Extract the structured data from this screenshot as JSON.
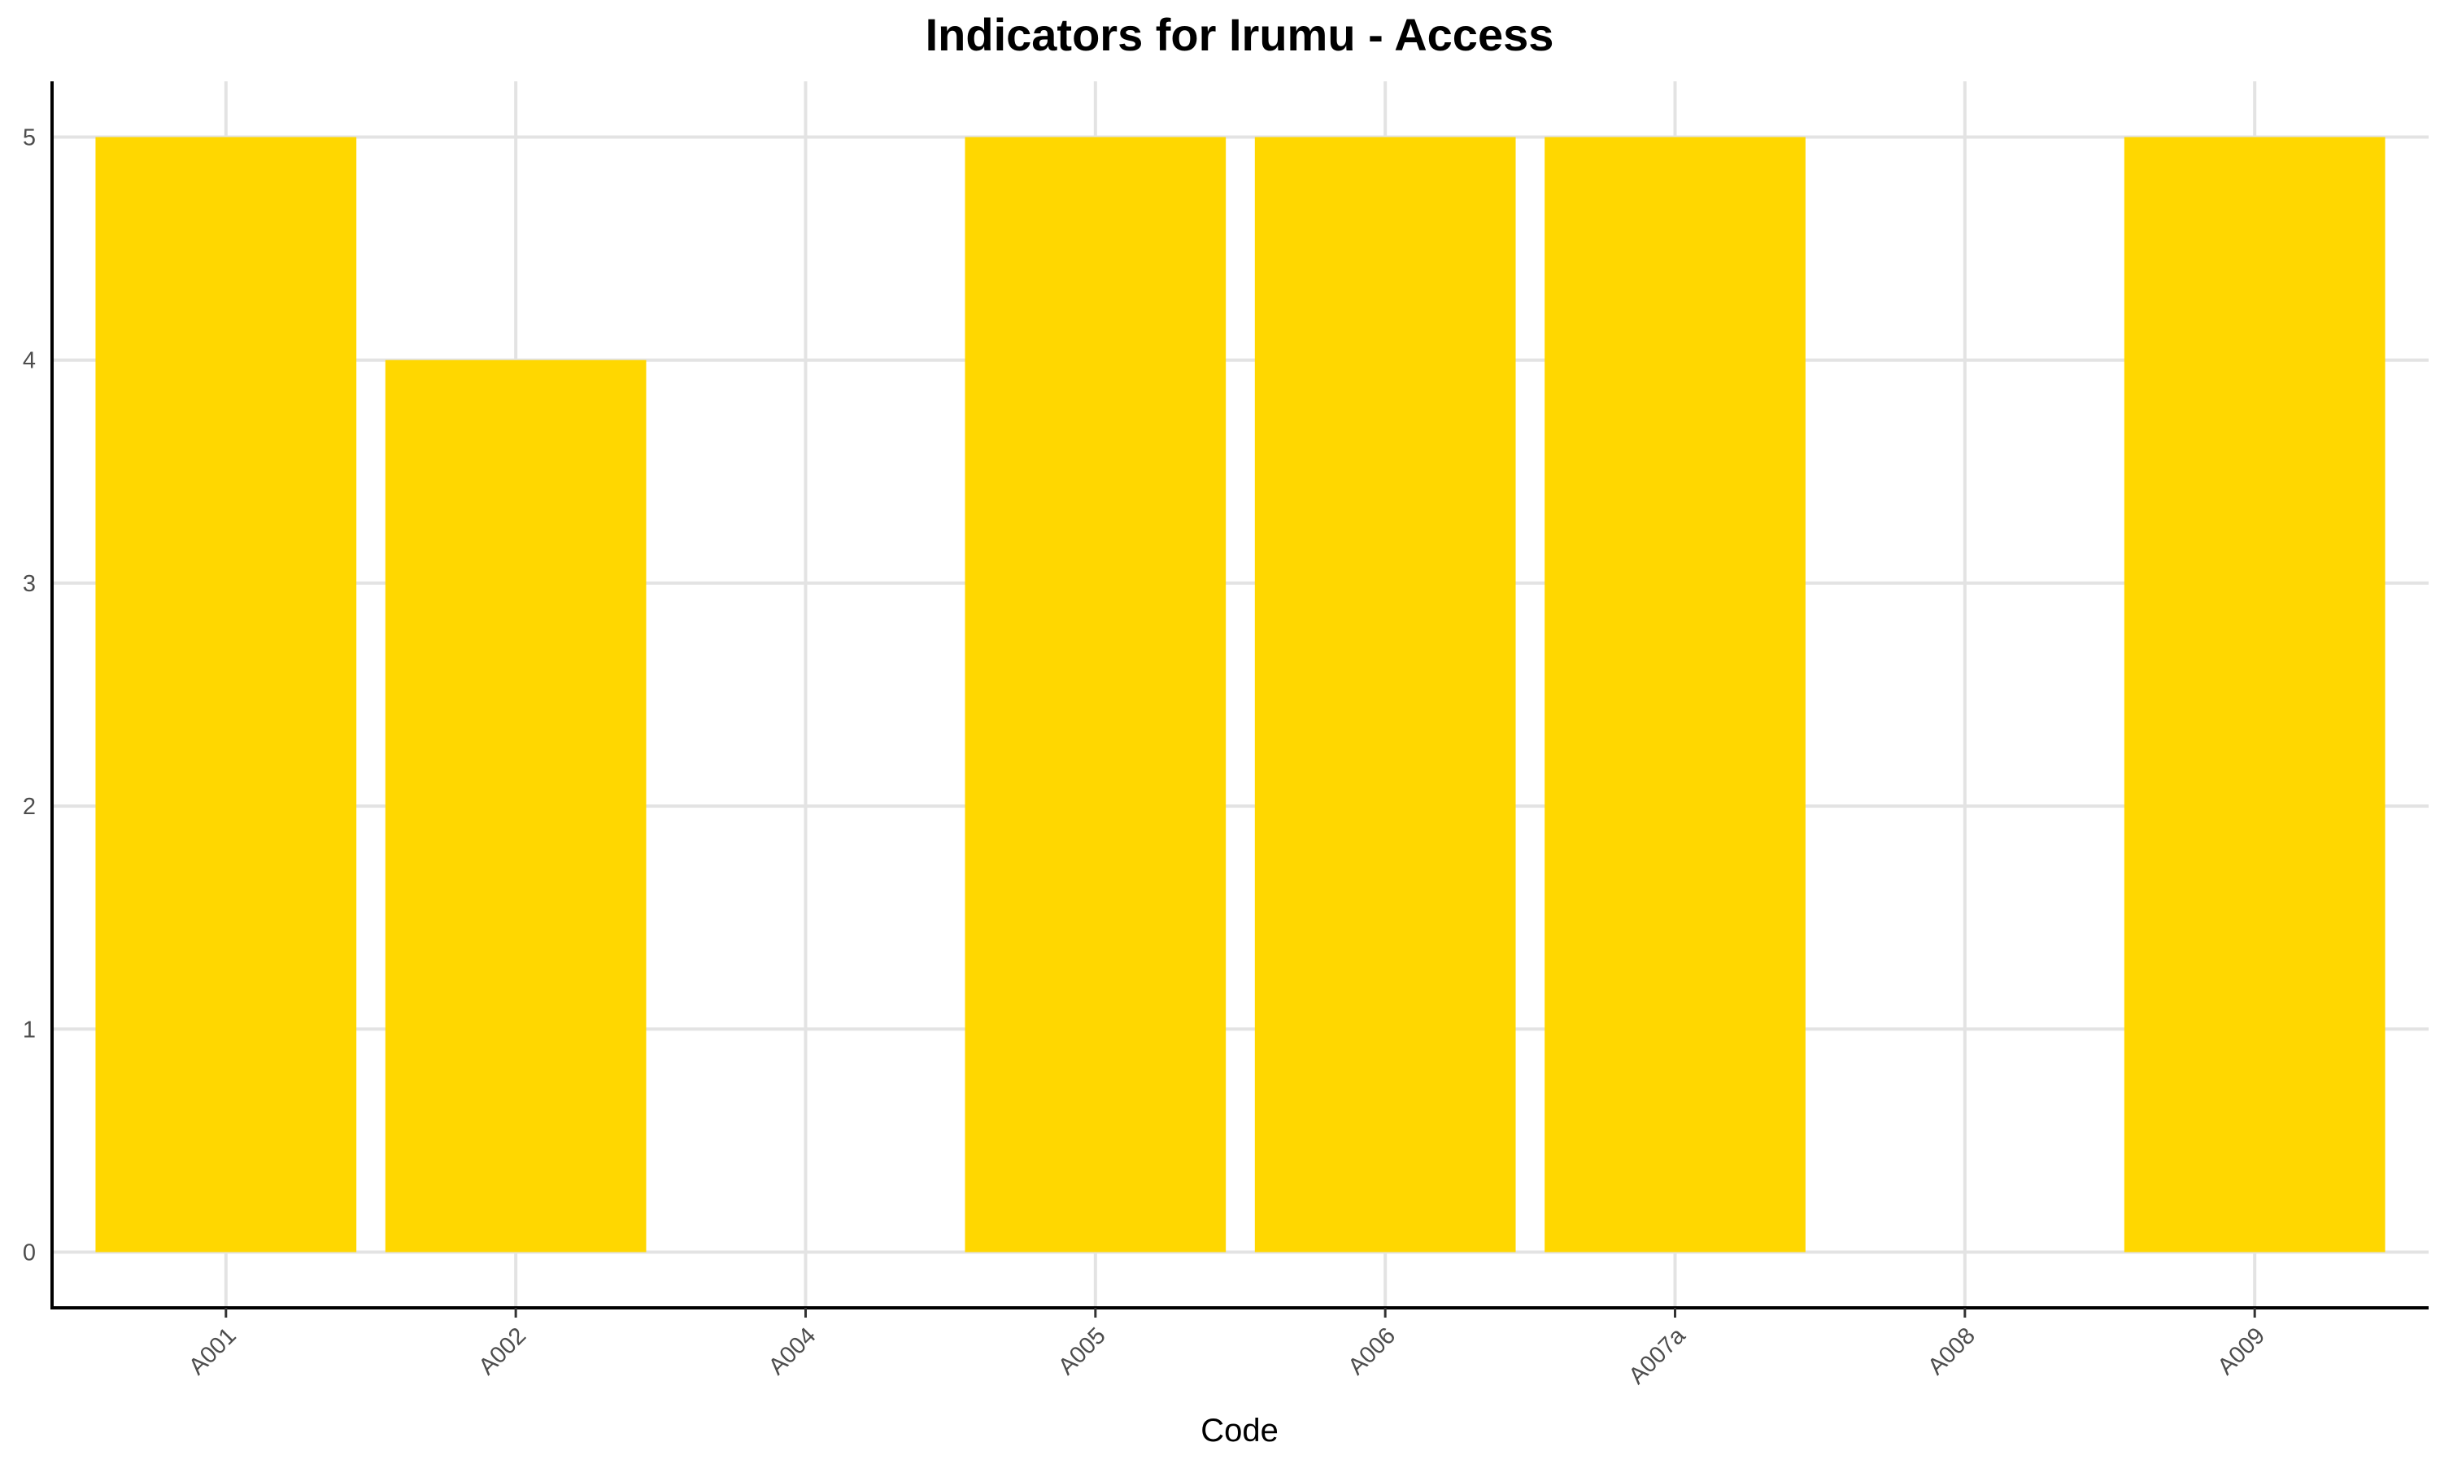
{
  "chart_data": {
    "type": "bar",
    "title": "Indicators for Irumu - Access",
    "xlabel": "Code",
    "ylabel": "",
    "categories": [
      "A001",
      "A002",
      "A004",
      "A005",
      "A006",
      "A007a",
      "A008",
      "A009"
    ],
    "values": [
      5,
      4,
      0,
      5,
      5,
      5,
      0,
      5
    ],
    "ylim": [
      -0.25,
      5.25
    ],
    "yticks": [
      0,
      1,
      2,
      3,
      4,
      5
    ],
    "grid": true,
    "legend": "none",
    "colors": {
      "bar": "#FFD700"
    }
  }
}
